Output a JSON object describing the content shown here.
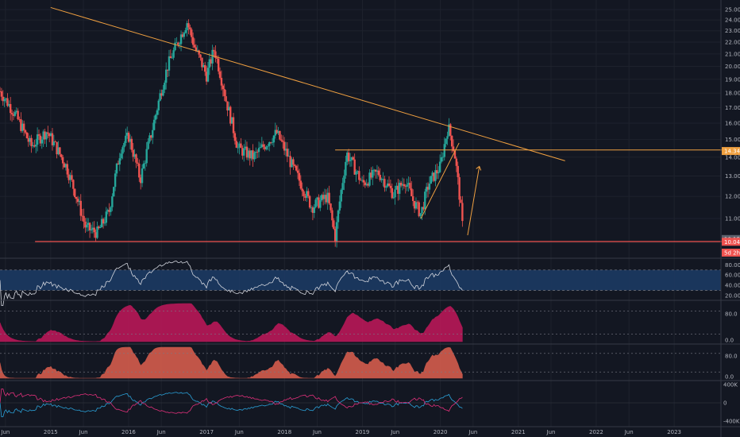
{
  "colors": {
    "background": "#131722",
    "grid": "#1e222d",
    "separator": "#363a45",
    "up": "#26a69a",
    "down": "#ef5350",
    "trendline": "#f0a040",
    "support": "#f0a040",
    "rsi_band": "#1c3a63",
    "rsi_line": "#d1d4dc",
    "indicator1_fill": "#c2185b",
    "indicator2_fill": "#e0604f",
    "osc_blue": "#2a9fd6",
    "osc_pink": "#e0307a"
  },
  "price_axis": {
    "ticks": [
      "25.00",
      "24.00",
      "23.00",
      "22.00",
      "21.00",
      "20.00",
      "19.00",
      "18.00",
      "17.00",
      "16.00",
      "15.00",
      "14.00",
      "13.00",
      "12.00",
      "11.00",
      "10.00"
    ],
    "min": 9.5,
    "max": 25.0,
    "scale": "log",
    "tags": [
      {
        "label": "14.34",
        "value": 14.34,
        "color": "#f0a040"
      },
      {
        "label": "10.15",
        "value": 10.15,
        "color": "#5d606b"
      },
      {
        "label": "10.04",
        "value": 10.04,
        "color": "#ef5350"
      },
      {
        "label": "5d 2h",
        "value": 9.62,
        "color": "#ef5350"
      }
    ]
  },
  "rsi_axis": {
    "ticks": [
      "80.00",
      "60.00",
      "40.00",
      "20.00"
    ]
  },
  "ind1_axis": {
    "ticks": [
      "80.0",
      "0.0"
    ]
  },
  "ind2_axis": {
    "ticks": [
      "80.0",
      "0.0"
    ]
  },
  "osc_axis": {
    "ticks": [
      "400K",
      "0",
      "-400K"
    ]
  },
  "time_axis": {
    "labels": [
      "Jun",
      "2015",
      "Jun",
      "2016",
      "Jun",
      "2017",
      "Jun",
      "2018",
      "Jun",
      "2019",
      "Jun",
      "2020",
      "Jun",
      "2021",
      "Jun",
      "2022",
      "Jun",
      "2023"
    ]
  },
  "chart_data": {
    "type": "candlestick",
    "symbol_note": "",
    "price_range": [
      9.5,
      25.0
    ],
    "keypoints": [
      {
        "t": 2014.33,
        "p": 18.3
      },
      {
        "t": 2014.55,
        "p": 16.5
      },
      {
        "t": 2014.75,
        "p": 14.6
      },
      {
        "t": 2014.95,
        "p": 15.5
      },
      {
        "t": 2015.2,
        "p": 13.5
      },
      {
        "t": 2015.45,
        "p": 10.6
      },
      {
        "t": 2015.6,
        "p": 10.4
      },
      {
        "t": 2015.75,
        "p": 11.3
      },
      {
        "t": 2015.9,
        "p": 14.5
      },
      {
        "t": 2016.0,
        "p": 15.2
      },
      {
        "t": 2016.15,
        "p": 12.8
      },
      {
        "t": 2016.3,
        "p": 15.5
      },
      {
        "t": 2016.5,
        "p": 20.0
      },
      {
        "t": 2016.75,
        "p": 23.8
      },
      {
        "t": 2016.85,
        "p": 21.5
      },
      {
        "t": 2017.0,
        "p": 19.3
      },
      {
        "t": 2017.1,
        "p": 21.4
      },
      {
        "t": 2017.25,
        "p": 17.5
      },
      {
        "t": 2017.4,
        "p": 14.5
      },
      {
        "t": 2017.6,
        "p": 14.0
      },
      {
        "t": 2017.9,
        "p": 15.4
      },
      {
        "t": 2018.1,
        "p": 13.5
      },
      {
        "t": 2018.35,
        "p": 11.5
      },
      {
        "t": 2018.55,
        "p": 12.0
      },
      {
        "t": 2018.65,
        "p": 10.2
      },
      {
        "t": 2018.8,
        "p": 14.2
      },
      {
        "t": 2019.0,
        "p": 12.6
      },
      {
        "t": 2019.2,
        "p": 13.2
      },
      {
        "t": 2019.4,
        "p": 12.1
      },
      {
        "t": 2019.55,
        "p": 12.8
      },
      {
        "t": 2019.65,
        "p": 11.8
      },
      {
        "t": 2019.75,
        "p": 11.2
      },
      {
        "t": 2019.85,
        "p": 12.6
      },
      {
        "t": 2020.0,
        "p": 13.5
      },
      {
        "t": 2020.1,
        "p": 15.8
      },
      {
        "t": 2020.18,
        "p": 14.3
      },
      {
        "t": 2020.27,
        "p": 11.2
      },
      {
        "t": 2020.3,
        "p": 10.04
      }
    ],
    "drawings": {
      "trendline": {
        "from": {
          "t": 2015.0,
          "p": 25.2
        },
        "to": {
          "t": 2021.6,
          "p": 13.8
        }
      },
      "resistance": {
        "from": {
          "t": 2018.65,
          "p": 14.4
        },
        "to": {
          "t": 2023.7,
          "p": 14.4
        }
      },
      "support": {
        "from": {
          "t": 2014.8,
          "p": 10.05
        },
        "to": {
          "t": 2023.7,
          "p": 10.05
        }
      },
      "rising_line": {
        "from": {
          "t": 2019.75,
          "p": 11.0
        },
        "to": {
          "t": 2020.24,
          "p": 14.8
        }
      },
      "arrow": {
        "from": {
          "t": 2020.35,
          "p": 10.3
        },
        "to": {
          "t": 2020.5,
          "p": 13.5
        }
      }
    }
  }
}
